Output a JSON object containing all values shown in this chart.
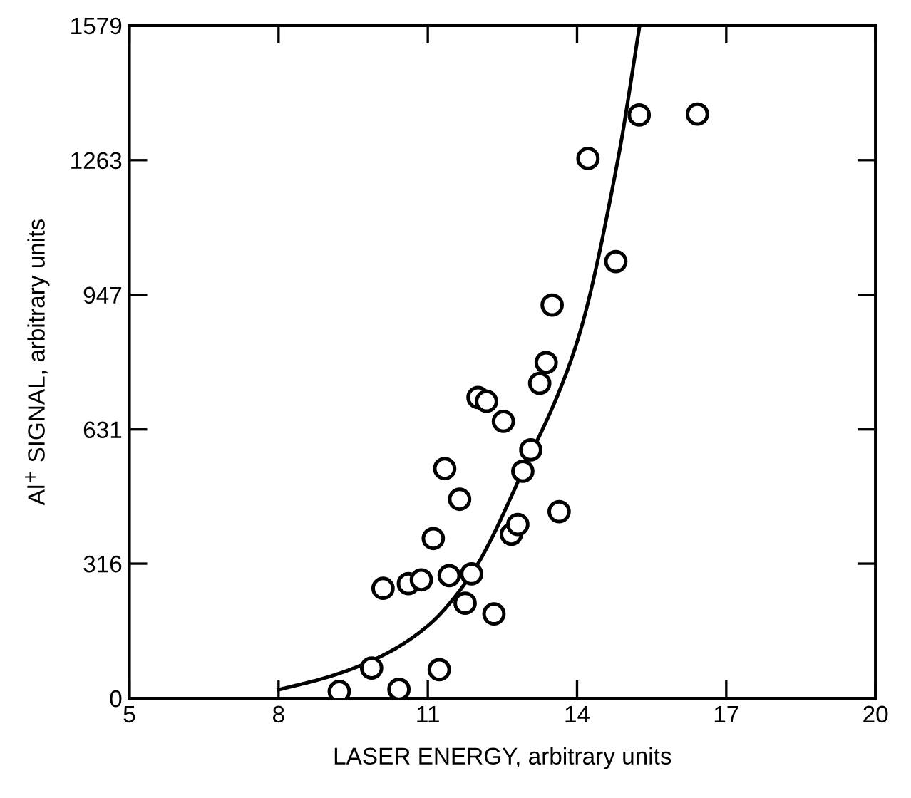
{
  "chart_data": {
    "type": "scatter",
    "xlabel": "LASER ENERGY, arbitrary units",
    "ylabel": "Al$^{+}$ SIGNAL, arbitrary units",
    "xlim": [
      5,
      20
    ],
    "xticks": [
      5,
      8,
      11,
      14,
      17,
      20
    ],
    "ylim": [
      0,
      1579
    ],
    "yticks": [
      0,
      316,
      631,
      947,
      1263,
      1579
    ],
    "grid": false,
    "series": [
      {
        "color": "#000000",
        "marker": "circle",
        "x": [
          9.22,
          9.87,
          10.42,
          11.23,
          10.1,
          10.61,
          10.87,
          11.11,
          11.43,
          11.34,
          11.64,
          11.75,
          11.88,
          12.01,
          12.18,
          12.33,
          12.52,
          12.68,
          12.81,
          12.91,
          13.07,
          13.25,
          13.38,
          13.5,
          13.64,
          14.22,
          14.78,
          15.25,
          16.42
        ],
        "values": [
          16,
          71,
          21,
          67,
          258,
          269,
          278,
          375,
          288,
          539,
          467,
          223,
          292,
          706,
          697,
          198,
          650,
          385,
          408,
          533,
          583,
          739,
          788,
          923,
          438,
          1267,
          1025,
          1369,
          1371
        ]
      },
      {
        "type": "line",
        "color": "#000000",
        "marker": "none",
        "line_style": "solid",
        "x": [
          8,
          9,
          10,
          11,
          11.88,
          12.91,
          14.0,
          14.82,
          15.26
        ],
        "values": [
          20,
          50,
          95,
          170,
          292,
          533,
          836,
          1263,
          1579
        ]
      }
    ]
  }
}
